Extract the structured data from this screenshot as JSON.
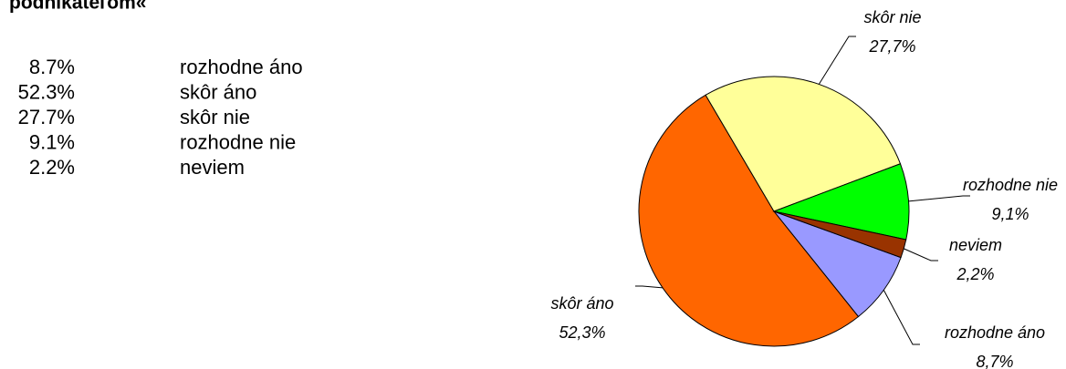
{
  "chart_data": {
    "type": "pie",
    "title": "podnikateľom«",
    "categories": [
      "rozhodne áno",
      "skôr áno",
      "skôr nie",
      "rozhodne nie",
      "neviem"
    ],
    "values": [
      8.7,
      52.3,
      27.7,
      9.1,
      2.2
    ],
    "value_labels": [
      "8,7%",
      "52,3%",
      "27,7%",
      "9,1%",
      "2,2%"
    ],
    "list_labels": [
      "8.7%",
      "52.3%",
      "27.7%",
      "9.1%",
      "2.2%"
    ],
    "colors": [
      "#9999ff",
      "#ff6600",
      "#ffff99",
      "#00ff00",
      "#993300"
    ]
  }
}
